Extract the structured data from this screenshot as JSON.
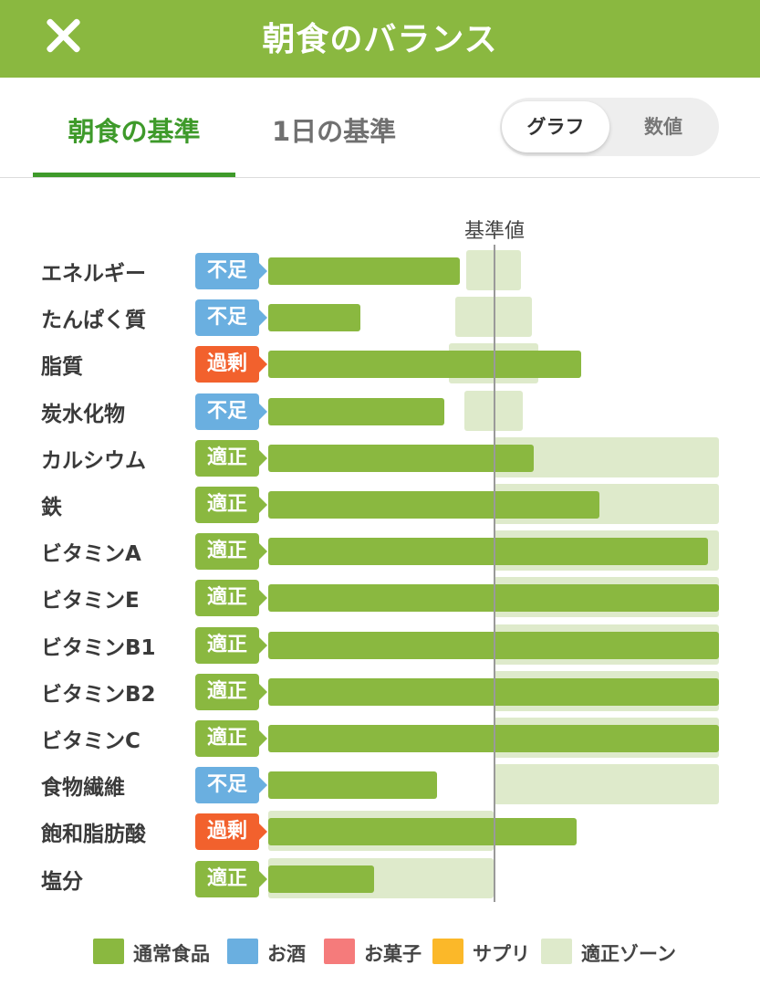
{
  "header": {
    "title": "朝食のバランス",
    "close_icon": "close-icon"
  },
  "tabs": [
    {
      "label": "朝食の基準",
      "active": true
    },
    {
      "label": "1日の基準",
      "active": false
    }
  ],
  "view_toggle": {
    "options": [
      "グラフ",
      "数値"
    ],
    "selected": "グラフ"
  },
  "chart_data": {
    "type": "bar",
    "orientation": "horizontal",
    "reference_label": "基準値",
    "reference_value": 100,
    "x_unit": "percent of reference",
    "xlim": [
      0,
      200
    ],
    "status_colors": {
      "不足": "#6aafe0",
      "過剰": "#f2612d",
      "適正": "#8ab840"
    },
    "rows": [
      {
        "category": "エネルギー",
        "status": "不足",
        "value": 85,
        "zone": [
          88,
          112
        ]
      },
      {
        "category": "たんぱく質",
        "status": "不足",
        "value": 41,
        "zone": [
          83,
          117
        ]
      },
      {
        "category": "脂質",
        "status": "過剰",
        "value": 139,
        "zone": [
          80,
          120
        ]
      },
      {
        "category": "炭水化物",
        "status": "不足",
        "value": 78,
        "zone": [
          87,
          113
        ]
      },
      {
        "category": "カルシウム",
        "status": "適正",
        "value": 118,
        "zone": [
          100,
          200
        ]
      },
      {
        "category": "鉄",
        "status": "適正",
        "value": 147,
        "zone": [
          100,
          200
        ]
      },
      {
        "category": "ビタミンA",
        "status": "適正",
        "value": 195,
        "zone": [
          100,
          200
        ]
      },
      {
        "category": "ビタミンE",
        "status": "適正",
        "value": 200,
        "zone": [
          100,
          200
        ]
      },
      {
        "category": "ビタミンB1",
        "status": "適正",
        "value": 200,
        "zone": [
          100,
          200
        ]
      },
      {
        "category": "ビタミンB2",
        "status": "適正",
        "value": 200,
        "zone": [
          100,
          200
        ]
      },
      {
        "category": "ビタミンC",
        "status": "適正",
        "value": 200,
        "zone": [
          100,
          200
        ]
      },
      {
        "category": "食物繊維",
        "status": "不足",
        "value": 75,
        "zone": [
          100,
          200
        ]
      },
      {
        "category": "飽和脂肪酸",
        "status": "過剰",
        "value": 137,
        "zone": [
          0,
          100
        ]
      },
      {
        "category": "塩分",
        "status": "適正",
        "value": 47,
        "zone": [
          0,
          100
        ]
      }
    ],
    "legend": [
      {
        "label": "通常食品",
        "color": "#8ab840"
      },
      {
        "label": "お酒",
        "color": "#6aafe0"
      },
      {
        "label": "お菓子",
        "color": "#f57b7b"
      },
      {
        "label": "サプリ",
        "color": "#fbb829"
      },
      {
        "label": "適正ゾーン",
        "color": "#deeacb"
      }
    ]
  }
}
